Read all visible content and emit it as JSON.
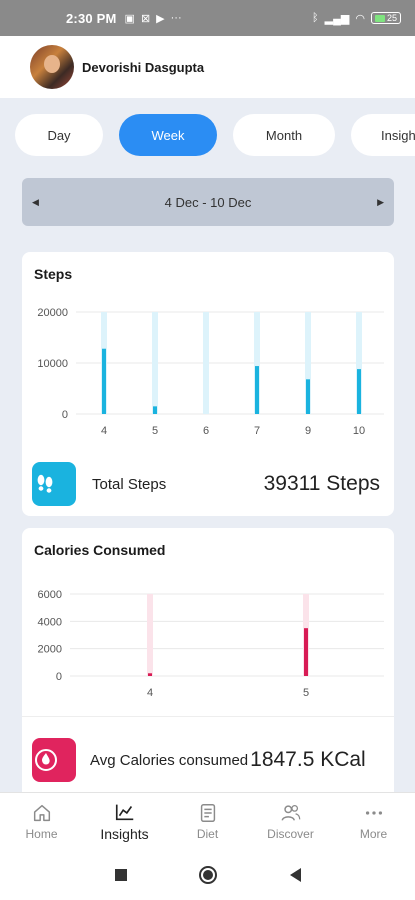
{
  "status_bar": {
    "time": "2:30 PM",
    "battery": "25"
  },
  "user": {
    "name": "Devorishi Dasgupta"
  },
  "tabs": [
    {
      "label": "Day"
    },
    {
      "label": "Week"
    },
    {
      "label": "Month"
    },
    {
      "label": "Insigh"
    }
  ],
  "date_range": "4 Dec - 10 Dec",
  "steps_card": {
    "title": "Steps",
    "total_label": "Total Steps",
    "total_value": "39311 Steps",
    "colors": {
      "bar": "#1ab3df",
      "track": "#ddf3fb"
    }
  },
  "calories_card": {
    "title": "Calories Consumed",
    "avg_label": "Avg Calories consumed",
    "avg_value": "1847.5 KCal",
    "colors": {
      "bar": "#d81b55",
      "track": "#fbe3ea"
    }
  },
  "chart_data": [
    {
      "type": "bar",
      "title": "Steps",
      "categories": [
        "4",
        "5",
        "6",
        "7",
        "9",
        "10"
      ],
      "values": [
        12800,
        1500,
        0,
        9400,
        6800,
        8800
      ],
      "ylim": [
        0,
        20000
      ],
      "yticks": [
        "0",
        "10000",
        "20000"
      ],
      "grid": true
    },
    {
      "type": "bar",
      "title": "Calories Consumed",
      "categories": [
        "4",
        "5"
      ],
      "values": [
        200,
        3500
      ],
      "ylim": [
        0,
        6000
      ],
      "yticks": [
        "0",
        "2000",
        "4000",
        "6000"
      ],
      "grid": true
    }
  ],
  "nav": [
    {
      "label": "Home",
      "icon": "home-icon"
    },
    {
      "label": "Insights",
      "icon": "chart-icon"
    },
    {
      "label": "Diet",
      "icon": "diet-icon"
    },
    {
      "label": "Discover",
      "icon": "people-icon"
    },
    {
      "label": "More",
      "icon": "more-icon"
    }
  ]
}
